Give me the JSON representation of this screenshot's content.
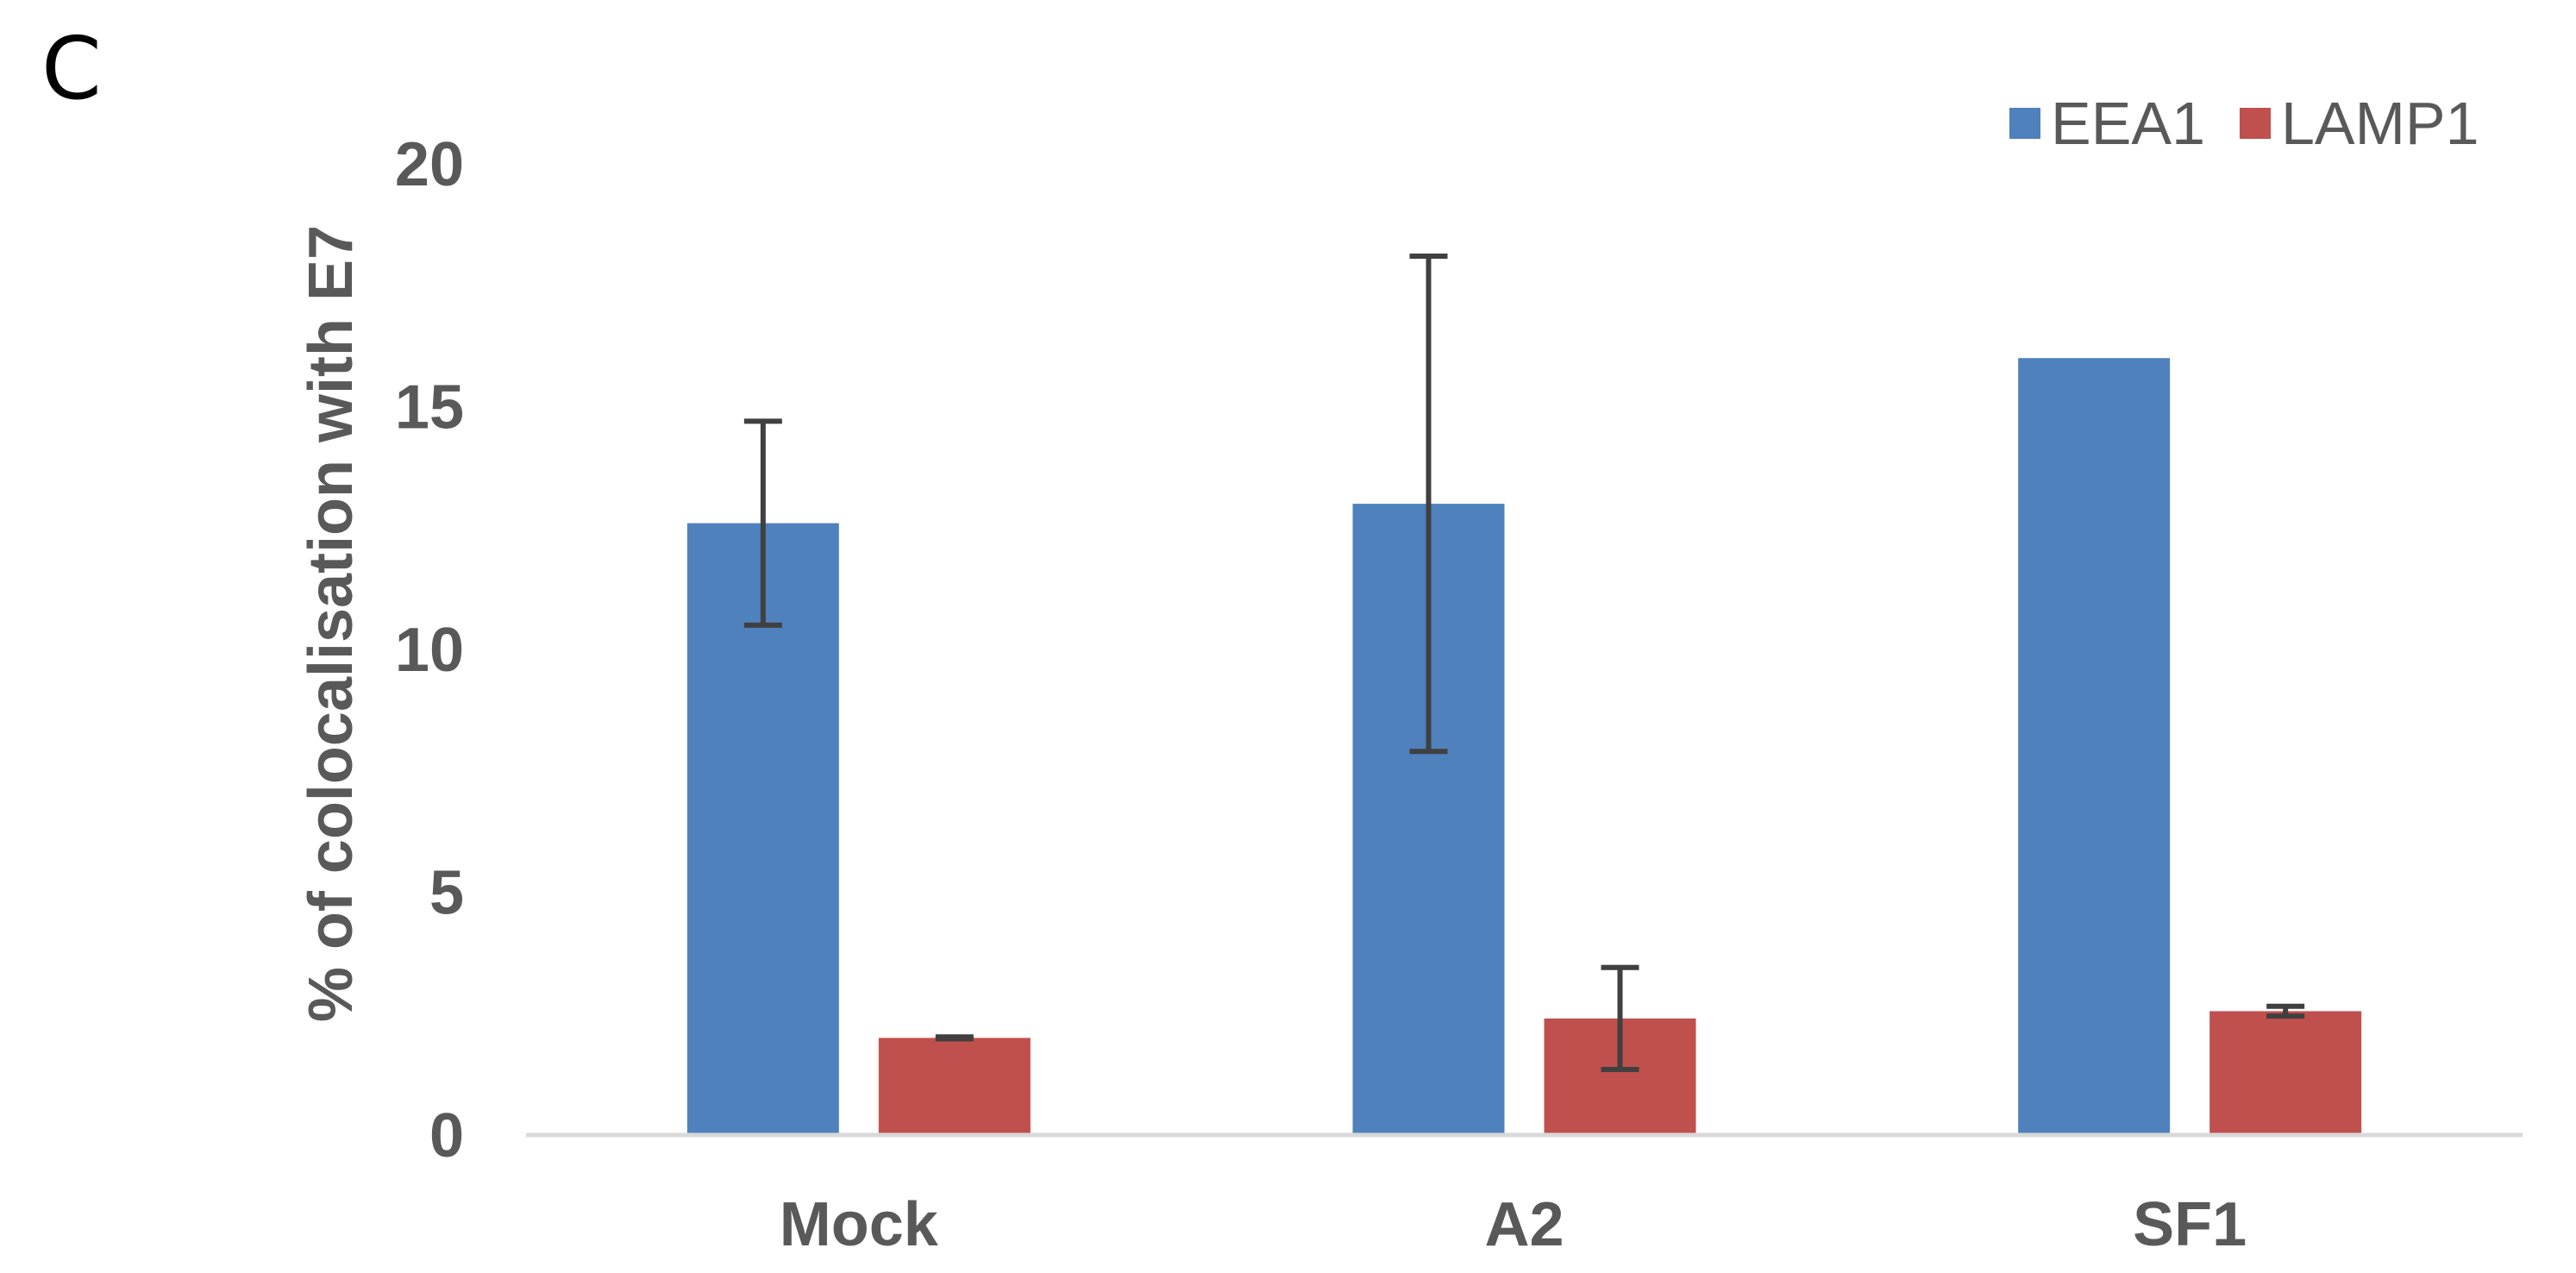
{
  "panel_label": "C",
  "chart_data": {
    "type": "bar",
    "categories": [
      "Mock",
      "A2",
      "SF1"
    ],
    "series": [
      {
        "name": "EEA1",
        "color": "#4F81BD",
        "values": [
          12.6,
          13.0,
          16.0
        ],
        "error": [
          2.1,
          5.1,
          0
        ]
      },
      {
        "name": "LAMP1",
        "color": "#C0504D",
        "values": [
          2.0,
          2.4,
          2.55
        ],
        "error": [
          0.02,
          1.05,
          0.1
        ]
      }
    ],
    "title": "",
    "xlabel": "",
    "ylabel": "% of colocalisation with E7",
    "ylim": [
      0,
      20
    ],
    "yticks": [
      0,
      5,
      10,
      15,
      20
    ],
    "grid": false,
    "legend_position": "top-right",
    "error_bar_color": "#404040",
    "axis_color": "#D9D9D9"
  }
}
